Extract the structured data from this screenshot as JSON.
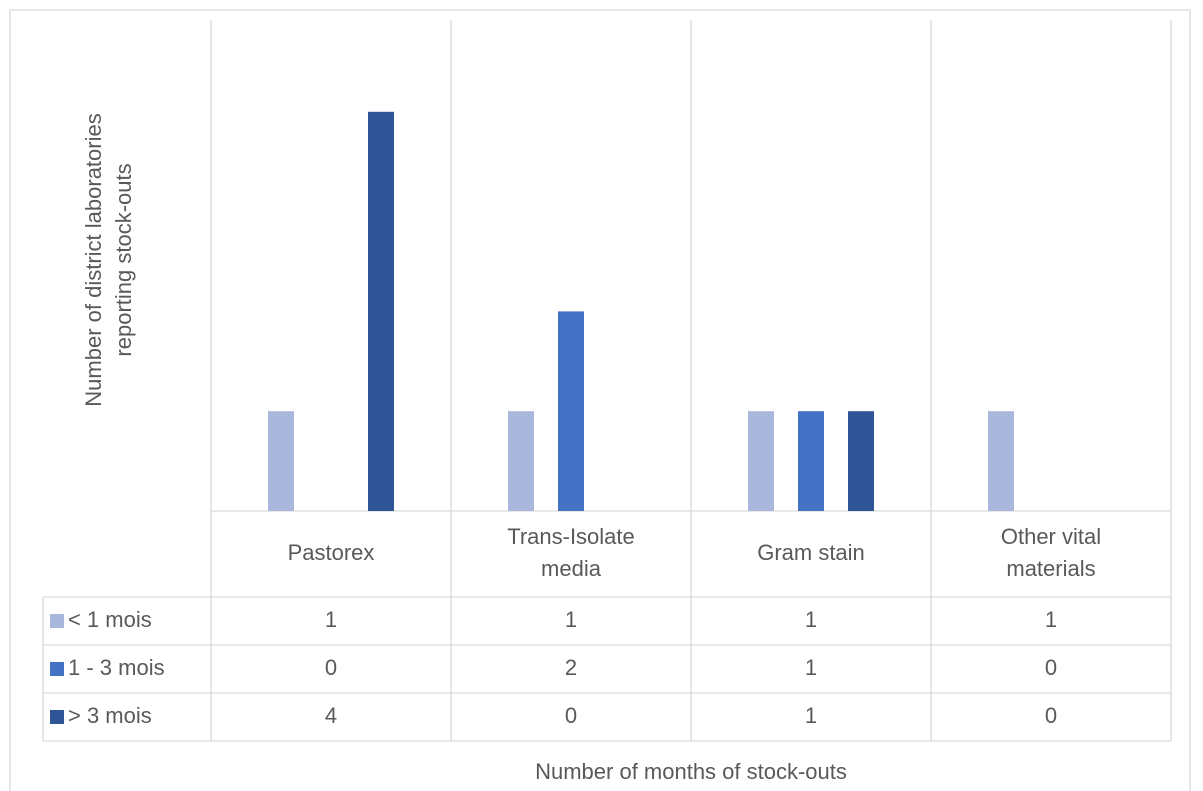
{
  "chart_data": {
    "type": "bar",
    "x_label": "Number of months of stock-outs",
    "y_label": "Number of district laboratories reporting stock-outs",
    "categories": [
      "Pastorex",
      "Trans-Isolate media",
      "Gram stain",
      "Other vital materials"
    ],
    "series": [
      {
        "name": "< 1 mois",
        "color": "#a9b7dc",
        "values": [
          1,
          1,
          1,
          1
        ]
      },
      {
        "name": "1 - 3 mois",
        "color": "#4472c4",
        "values": [
          0,
          2,
          1,
          0
        ]
      },
      {
        "name": "> 3 mois",
        "color": "#2f5597",
        "values": [
          4,
          0,
          1,
          0
        ]
      }
    ],
    "ylim": [
      0,
      5
    ],
    "data_table": true
  }
}
